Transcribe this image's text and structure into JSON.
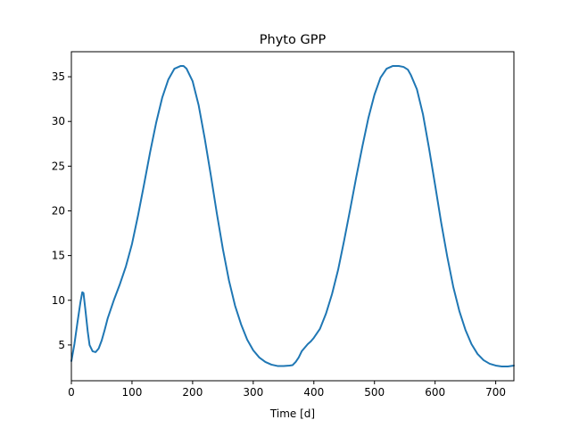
{
  "chart_data": {
    "type": "line",
    "title": "Phyto GPP",
    "xlabel": "Time [d]",
    "ylabel": "",
    "xlim": [
      0,
      730
    ],
    "ylim": [
      1,
      37.8
    ],
    "xticks": [
      0,
      100,
      200,
      300,
      400,
      500,
      600,
      700
    ],
    "yticks": [
      5,
      10,
      15,
      20,
      25,
      30,
      35
    ],
    "grid": false,
    "legend": "none",
    "series": [
      {
        "color": "#1f77b4",
        "x": [
          0,
          5,
          10,
          15,
          18,
          20,
          23,
          27,
          30,
          35,
          40,
          45,
          50,
          55,
          60,
          70,
          80,
          90,
          100,
          110,
          120,
          130,
          140,
          150,
          160,
          170,
          180,
          185,
          190,
          200,
          210,
          220,
          230,
          240,
          250,
          260,
          270,
          280,
          290,
          300,
          310,
          320,
          330,
          340,
          350,
          360,
          365,
          370,
          375,
          380,
          390,
          395,
          400,
          410,
          420,
          430,
          440,
          450,
          460,
          470,
          480,
          490,
          500,
          510,
          520,
          530,
          540,
          548,
          555,
          560,
          570,
          580,
          590,
          600,
          610,
          620,
          630,
          640,
          650,
          660,
          670,
          680,
          690,
          700,
          710,
          720,
          730
        ],
        "y": [
          3.2,
          5.1,
          7.5,
          9.8,
          10.9,
          10.8,
          9.0,
          6.5,
          5.0,
          4.3,
          4.2,
          4.6,
          5.5,
          6.7,
          8.0,
          10.0,
          11.8,
          13.8,
          16.3,
          19.5,
          23.0,
          26.6,
          29.9,
          32.7,
          34.7,
          35.9,
          36.2,
          36.2,
          35.9,
          34.5,
          31.8,
          28.1,
          24.0,
          19.7,
          15.7,
          12.2,
          9.4,
          7.3,
          5.6,
          4.4,
          3.6,
          3.1,
          2.8,
          2.65,
          2.65,
          2.7,
          2.75,
          3.1,
          3.6,
          4.3,
          5.1,
          5.4,
          5.8,
          6.8,
          8.5,
          10.7,
          13.4,
          16.7,
          20.2,
          23.8,
          27.2,
          30.4,
          33.0,
          34.9,
          35.9,
          36.2,
          36.2,
          36.1,
          35.8,
          35.2,
          33.6,
          30.8,
          27.0,
          22.9,
          18.7,
          14.9,
          11.5,
          8.8,
          6.7,
          5.1,
          4.0,
          3.3,
          2.9,
          2.7,
          2.6,
          2.6,
          2.7
        ]
      }
    ]
  }
}
